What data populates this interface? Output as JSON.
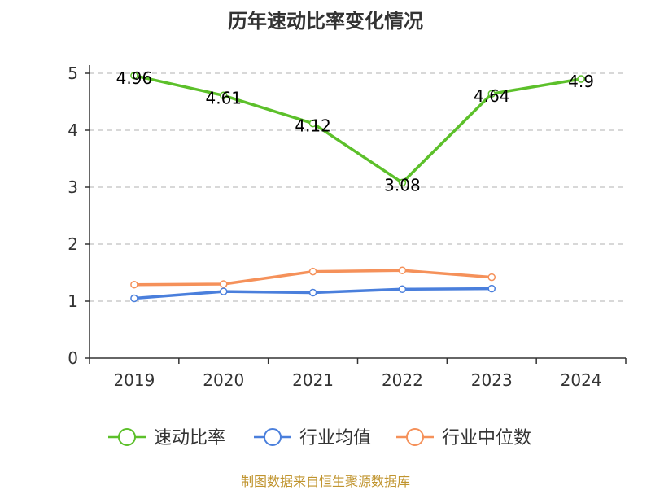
{
  "chart_data": {
    "type": "line",
    "title": "历年速动比率变化情况",
    "categories": [
      "2019",
      "2020",
      "2021",
      "2022",
      "2023",
      "2024"
    ],
    "ylim": [
      0,
      5
    ],
    "yticks": [
      0,
      1,
      2,
      3,
      4,
      5
    ],
    "grid": true,
    "legend_position": "bottom",
    "series": [
      {
        "name": "速动比率",
        "color": "#5cc02a",
        "values": [
          4.96,
          4.61,
          4.12,
          3.08,
          4.64,
          4.9
        ],
        "labels": [
          "4.96",
          "4.61",
          "4.12",
          "3.08",
          "4.64",
          "4.9"
        ]
      },
      {
        "name": "行业均值",
        "color": "#4a7fdc",
        "values": [
          1.05,
          1.17,
          1.15,
          1.21,
          1.22,
          null
        ]
      },
      {
        "name": "行业中位数",
        "color": "#f5915a",
        "values": [
          1.29,
          1.3,
          1.52,
          1.54,
          1.42,
          null
        ]
      }
    ]
  },
  "source": "制图数据来自恒生聚源数据库"
}
